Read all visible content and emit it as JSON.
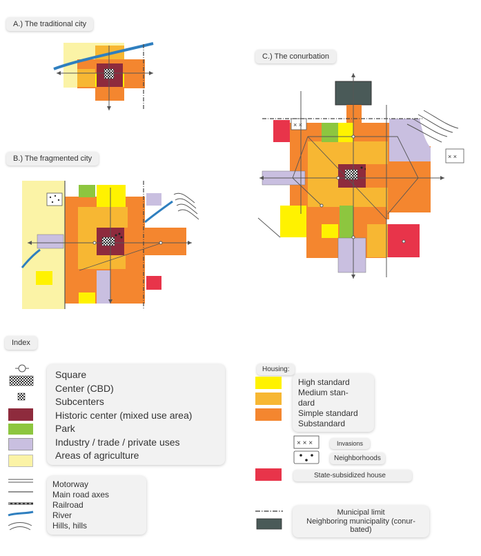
{
  "panels": {
    "a_title": "A.) The traditional city",
    "b_title": "B.) The fragmented city",
    "c_title": "C.) The conurbation"
  },
  "index_title": "Index",
  "housing_title": "Housing:",
  "legend_left_main": [
    "Square",
    "Center (CBD)",
    "Subcenters",
    "Historic center (mixed use area)",
    "Park",
    "Industry / trade / private uses",
    "Areas of agriculture"
  ],
  "legend_left_lines": [
    "Motorway",
    "Main road axes",
    "Railroad",
    "River",
    "Hills, hills"
  ],
  "housing_items": [
    "High standard",
    "Medium stan-",
    "dard",
    "Simple standard",
    "Substandard"
  ],
  "invasions": "Invasions",
  "neighborhoods": "Neighborhoods",
  "state_house": "State-subsidized house",
  "municipal_limit": "Municipal limit",
  "neighboring_1": "Neighboring municipality (conur-",
  "neighboring_2": "bated)",
  "colors": {
    "high_standard": "#fff200",
    "medium_standard": "#f7b733",
    "simple_standard": "#f4862f",
    "substandard": "#f37a2c",
    "historic_center": "#8e2b3d",
    "park": "#8dc63f",
    "industry": "#c9bfe0",
    "agriculture": "#fbf3a6",
    "state_subsidized": "#e8344a",
    "neighboring_municipality": "#4a5a58",
    "river": "#2f7fbf"
  }
}
